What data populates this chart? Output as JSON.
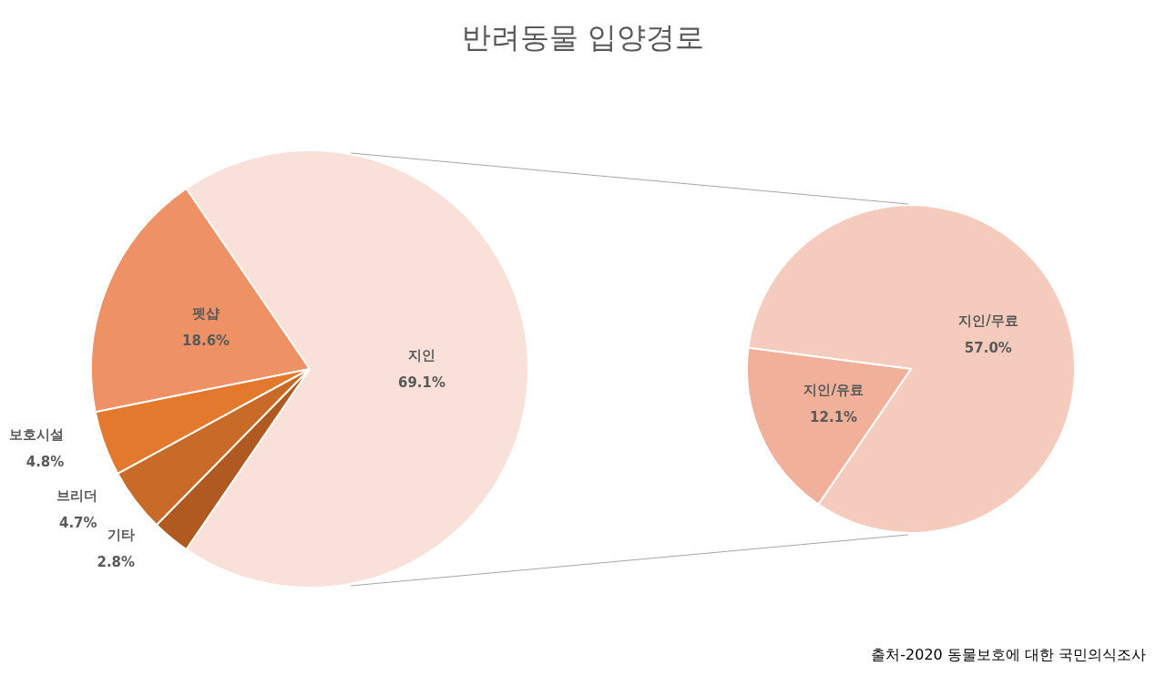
{
  "chart_data": [
    {
      "type": "pie",
      "title": "반려동물 입양경로",
      "categories": [
        "지인",
        "펫샵",
        "보호시설",
        "브리더",
        "기타"
      ],
      "values": [
        69.1,
        18.6,
        4.8,
        4.7,
        2.8
      ],
      "colors": [
        "#f9e0d8",
        "#ee9266",
        "#e2792d",
        "#c86a28",
        "#b05a22"
      ],
      "value_labels": [
        "69.1%",
        "18.6%",
        "4.8%",
        "4.7%",
        "2.8%"
      ],
      "legend": false
    },
    {
      "type": "pie",
      "categories": [
        "지인/무료",
        "지인/유료"
      ],
      "values": [
        57.0,
        12.1
      ],
      "colors": [
        "#f5cbbd",
        "#f0b09a"
      ],
      "value_labels": [
        "57.0%",
        "12.1%"
      ],
      "legend": false,
      "annotations": [
        "출처-2020 동물보호에 대한 국민의식조사"
      ]
    }
  ]
}
